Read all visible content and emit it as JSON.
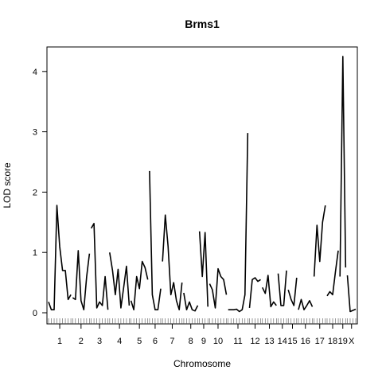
{
  "chart_data": {
    "type": "line",
    "title": "Brms1",
    "xlabel": "Chromosome",
    "ylabel": "LOD score",
    "grid": false,
    "legend": "none",
    "ylim": [
      -0.15,
      4.4
    ],
    "yticks": [
      0,
      1,
      2,
      3,
      4
    ],
    "color": "#000000",
    "chromosomes": [
      {
        "name": "1",
        "label": "1",
        "lod": [
          0.18,
          0.05,
          0.05,
          1.78,
          1.1,
          0.7,
          0.7,
          0.22,
          0.3
        ]
      },
      {
        "name": "2",
        "label": "2",
        "lod": [
          0.25,
          0.22,
          1.03,
          0.2,
          0.05,
          0.6,
          0.98
        ]
      },
      {
        "name": "3",
        "label": "3",
        "lod": [
          1.4,
          1.48,
          0.08,
          0.18,
          0.12,
          0.6,
          0.05
        ]
      },
      {
        "name": "4",
        "label": "4",
        "lod": [
          1.0,
          0.7,
          0.3,
          0.72,
          0.08,
          0.42,
          0.77,
          0.12
        ]
      },
      {
        "name": "5",
        "label": "5",
        "lod": [
          0.2,
          0.05,
          0.6,
          0.4,
          0.85,
          0.75,
          0.55
        ]
      },
      {
        "name": "6",
        "label": "6",
        "lod": [
          2.35,
          0.3,
          0.05,
          0.05,
          0.4
        ]
      },
      {
        "name": "7",
        "label": "7",
        "lod": [
          0.85,
          1.62,
          1.1,
          0.3,
          0.5,
          0.2,
          0.05,
          0.5
        ]
      },
      {
        "name": "8",
        "label": "8",
        "lod": [
          0.33,
          0.05,
          0.18,
          0.05,
          0.03,
          0.12
        ]
      },
      {
        "name": "9",
        "label": "9",
        "lod": [
          1.35,
          0.6,
          1.33,
          0.1
        ]
      },
      {
        "name": "10",
        "label": "10",
        "lod": [
          0.48,
          0.38,
          0.08,
          0.73,
          0.6,
          0.55,
          0.3
        ]
      },
      {
        "name": "11",
        "label": "11",
        "lod": [
          0.05,
          0.05,
          0.05,
          0.06,
          0.02,
          0.05,
          0.3,
          2.98
        ]
      },
      {
        "name": "12",
        "label": "12",
        "lod": [
          0.08,
          0.55,
          0.58,
          0.52,
          0.55
        ]
      },
      {
        "name": "13",
        "label": "13",
        "lod": [
          0.42,
          0.32,
          0.62,
          0.1,
          0.18,
          0.12
        ]
      },
      {
        "name": "14",
        "label": "14",
        "lod": [
          0.65,
          0.12,
          0.12,
          0.7
        ]
      },
      {
        "name": "15",
        "label": "15",
        "lod": [
          0.38,
          0.22,
          0.12,
          0.58
        ]
      },
      {
        "name": "16",
        "label": "16",
        "lod": [
          0.05,
          0.22,
          0.05,
          0.12,
          0.2,
          0.1
        ]
      },
      {
        "name": "17",
        "label": "17",
        "lod": [
          0.6,
          1.45,
          0.85,
          1.5,
          1.78
        ]
      },
      {
        "name": "18",
        "label": "18",
        "lod": [
          0.28,
          0.35,
          0.3,
          0.68,
          1.03
        ]
      },
      {
        "name": "19",
        "label": "19",
        "lod": [
          0.6,
          4.25,
          0.75
        ]
      },
      {
        "name": "X",
        "label": "X",
        "lod": [
          0.62,
          0.02,
          0.04,
          0.06
        ]
      }
    ]
  }
}
